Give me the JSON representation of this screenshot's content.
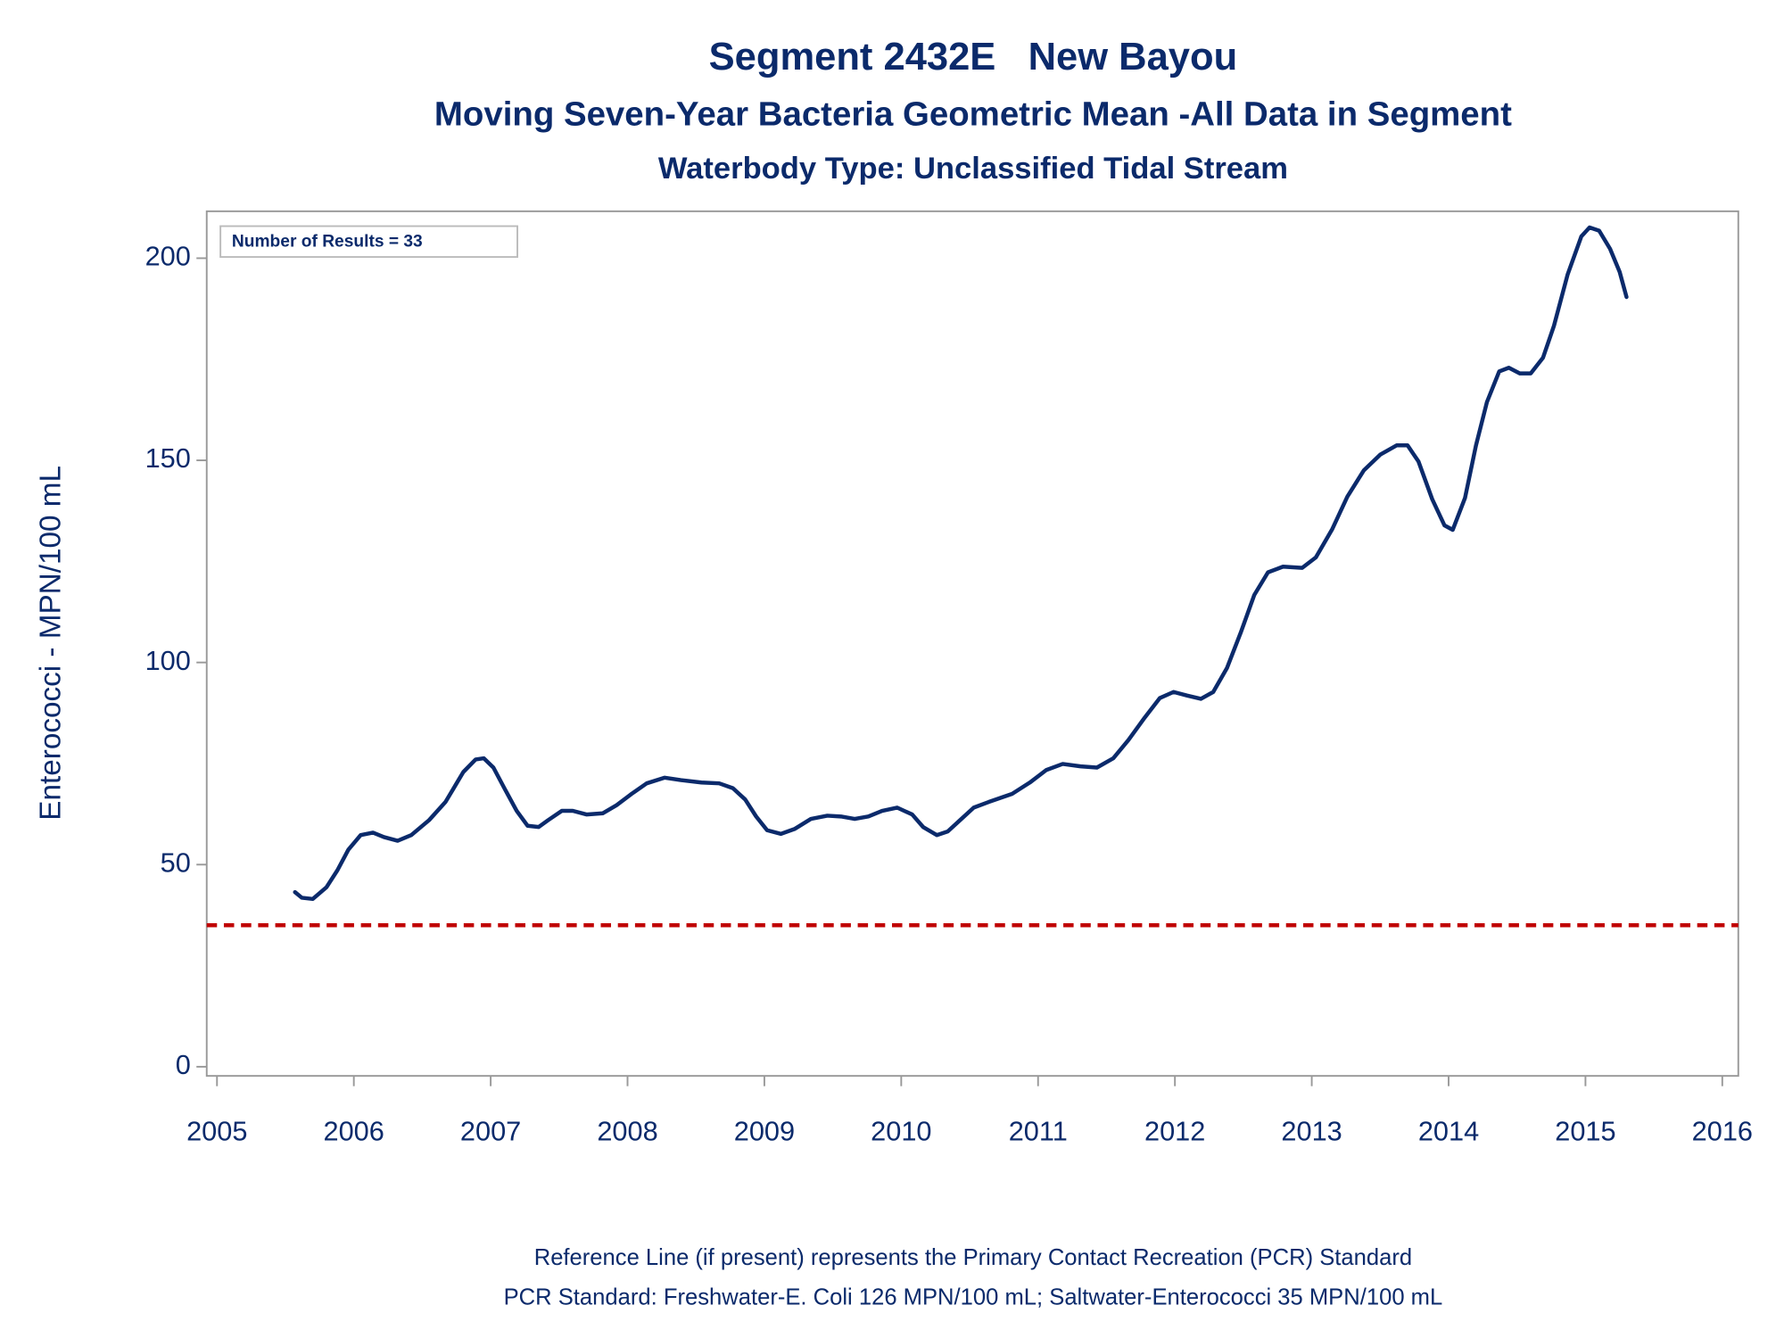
{
  "chart_data": {
    "type": "line",
    "title": "Segment 2432E   New Bayou",
    "subtitle": "Moving Seven-Year Bacteria Geometric Mean -All Data in Segment",
    "subtitle2": "Waterbody Type: Unclassified Tidal Stream",
    "ylabel": "Enterococci - MPN/100 mL",
    "annotation": "Number of Results = 33",
    "footnotes": [
      "Reference Line (if present) represents the Primary Contact Recreation (PCR) Standard",
      "PCR Standard: Freshwater-E. Coli 126 MPN/100 mL; Saltwater-Enterococci 35 MPN/100 mL"
    ],
    "xlim": [
      2004.925,
      2016.117
    ],
    "xticks": [
      2005,
      2006,
      2007,
      2008,
      2009,
      2010,
      2011,
      2012,
      2013,
      2014,
      2015,
      2016
    ],
    "ylim": [
      -2.26,
      211.6
    ],
    "yticks": [
      0,
      50,
      100,
      150,
      200
    ],
    "reference_line": {
      "value": 35,
      "color": "#c00000"
    },
    "series": [
      {
        "color": "#0b2a6b",
        "x": [
          2005.57,
          2005.62,
          2005.7,
          2005.8,
          2005.88,
          2005.96,
          2006.05,
          2006.14,
          2006.22,
          2006.32,
          2006.42,
          2006.55,
          2006.67,
          2006.8,
          2006.89,
          2006.95,
          2007.02,
          2007.1,
          2007.19,
          2007.27,
          2007.35,
          2007.42,
          2007.52,
          2007.6,
          2007.7,
          2007.82,
          2007.92,
          2008.03,
          2008.14,
          2008.27,
          2008.39,
          2008.54,
          2008.67,
          2008.77,
          2008.86,
          2008.94,
          2009.02,
          2009.12,
          2009.22,
          2009.34,
          2009.46,
          2009.56,
          2009.66,
          2009.76,
          2009.86,
          2009.97,
          2010.08,
          2010.16,
          2010.26,
          2010.34,
          2010.43,
          2010.53,
          2010.64,
          2010.81,
          2010.94,
          2011.06,
          2011.18,
          2011.31,
          2011.43,
          2011.55,
          2011.66,
          2011.78,
          2011.89,
          2011.99,
          2012.09,
          2012.19,
          2012.28,
          2012.38,
          2012.48,
          2012.58,
          2012.68,
          2012.79,
          2012.93,
          2013.03,
          2013.15,
          2013.26,
          2013.38,
          2013.5,
          2013.62,
          2013.7,
          2013.78,
          2013.88,
          2013.97,
          2014.03,
          2014.12,
          2014.2,
          2014.28,
          2014.37,
          2014.44,
          2014.52,
          2014.6,
          2014.69,
          2014.77,
          2014.87,
          2014.97,
          2015.03,
          2015.1,
          2015.18,
          2015.25,
          2015.3
        ],
        "values": [
          43.2,
          41.8,
          41.5,
          44.4,
          48.6,
          53.7,
          57.3,
          57.9,
          56.8,
          55.9,
          57.3,
          61,
          65.5,
          72.9,
          76,
          76.3,
          74,
          68.9,
          63.3,
          59.6,
          59.3,
          61,
          63.3,
          63.3,
          62.4,
          62.7,
          64.7,
          67.5,
          70.1,
          71.5,
          70.9,
          70.3,
          70.1,
          68.9,
          66.1,
          61.9,
          58.5,
          57.6,
          58.8,
          61.3,
          62.1,
          61.9,
          61.3,
          61.9,
          63.3,
          64.1,
          62.4,
          59.3,
          57.3,
          58.2,
          61,
          64.1,
          65.5,
          67.5,
          70.3,
          73.4,
          74.9,
          74.3,
          74,
          76.3,
          80.8,
          86.4,
          91.2,
          92.7,
          91.8,
          91,
          92.7,
          98.6,
          107.3,
          116.7,
          122.3,
          123.7,
          123.4,
          126,
          133,
          141,
          147.5,
          151.4,
          153.7,
          153.7,
          149.7,
          140.4,
          133.9,
          132.8,
          140.7,
          153.7,
          164.4,
          172,
          172.9,
          171.5,
          171.5,
          175.4,
          183.3,
          196,
          205.4,
          207.6,
          206.8,
          202.3,
          196.6,
          190.4
        ]
      }
    ]
  }
}
